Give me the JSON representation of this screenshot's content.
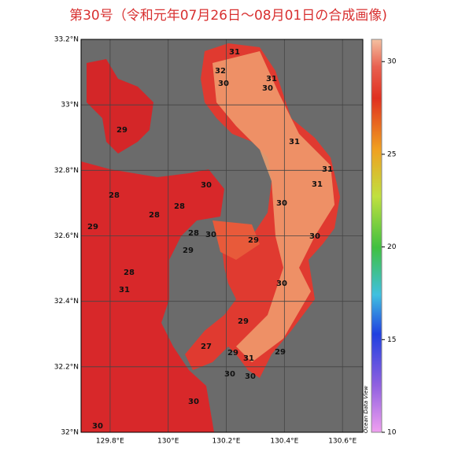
{
  "title": "第30号（令和元年07月26日～08月01日の合成画像)",
  "map": {
    "xlim": [
      129.7,
      130.67
    ],
    "ylim": [
      32,
      33.2
    ],
    "lat_ticks": [
      {
        "value": 32,
        "label": "32°N"
      },
      {
        "value": 32.2,
        "label": "32.2°N"
      },
      {
        "value": 32.4,
        "label": "32.4°N"
      },
      {
        "value": 32.6,
        "label": "32.6°N"
      },
      {
        "value": 32.8,
        "label": "32.8°N"
      },
      {
        "value": 33,
        "label": "33°N"
      },
      {
        "value": 33.2,
        "label": "33.2°N"
      }
    ],
    "lon_ticks": [
      {
        "value": 129.8,
        "label": "129.8°E"
      },
      {
        "value": 130,
        "label": "130°E"
      },
      {
        "value": 130.2,
        "label": "130.2°E"
      },
      {
        "value": 130.4,
        "label": "130.4°E"
      },
      {
        "value": 130.6,
        "label": "130.6°E"
      }
    ],
    "contour_labels": [
      31,
      32,
      30,
      31,
      30,
      31,
      31,
      31,
      30,
      28,
      30,
      29,
      28,
      28,
      29,
      28,
      29,
      29,
      30,
      30,
      28,
      31,
      30,
      29,
      27,
      29,
      31,
      30,
      30,
      29,
      30,
      30
    ]
  },
  "colorbar": {
    "lim": [
      10,
      31.2
    ],
    "ticks": [
      10,
      15,
      20,
      25,
      30
    ]
  },
  "credit": "Ocean Data View"
}
